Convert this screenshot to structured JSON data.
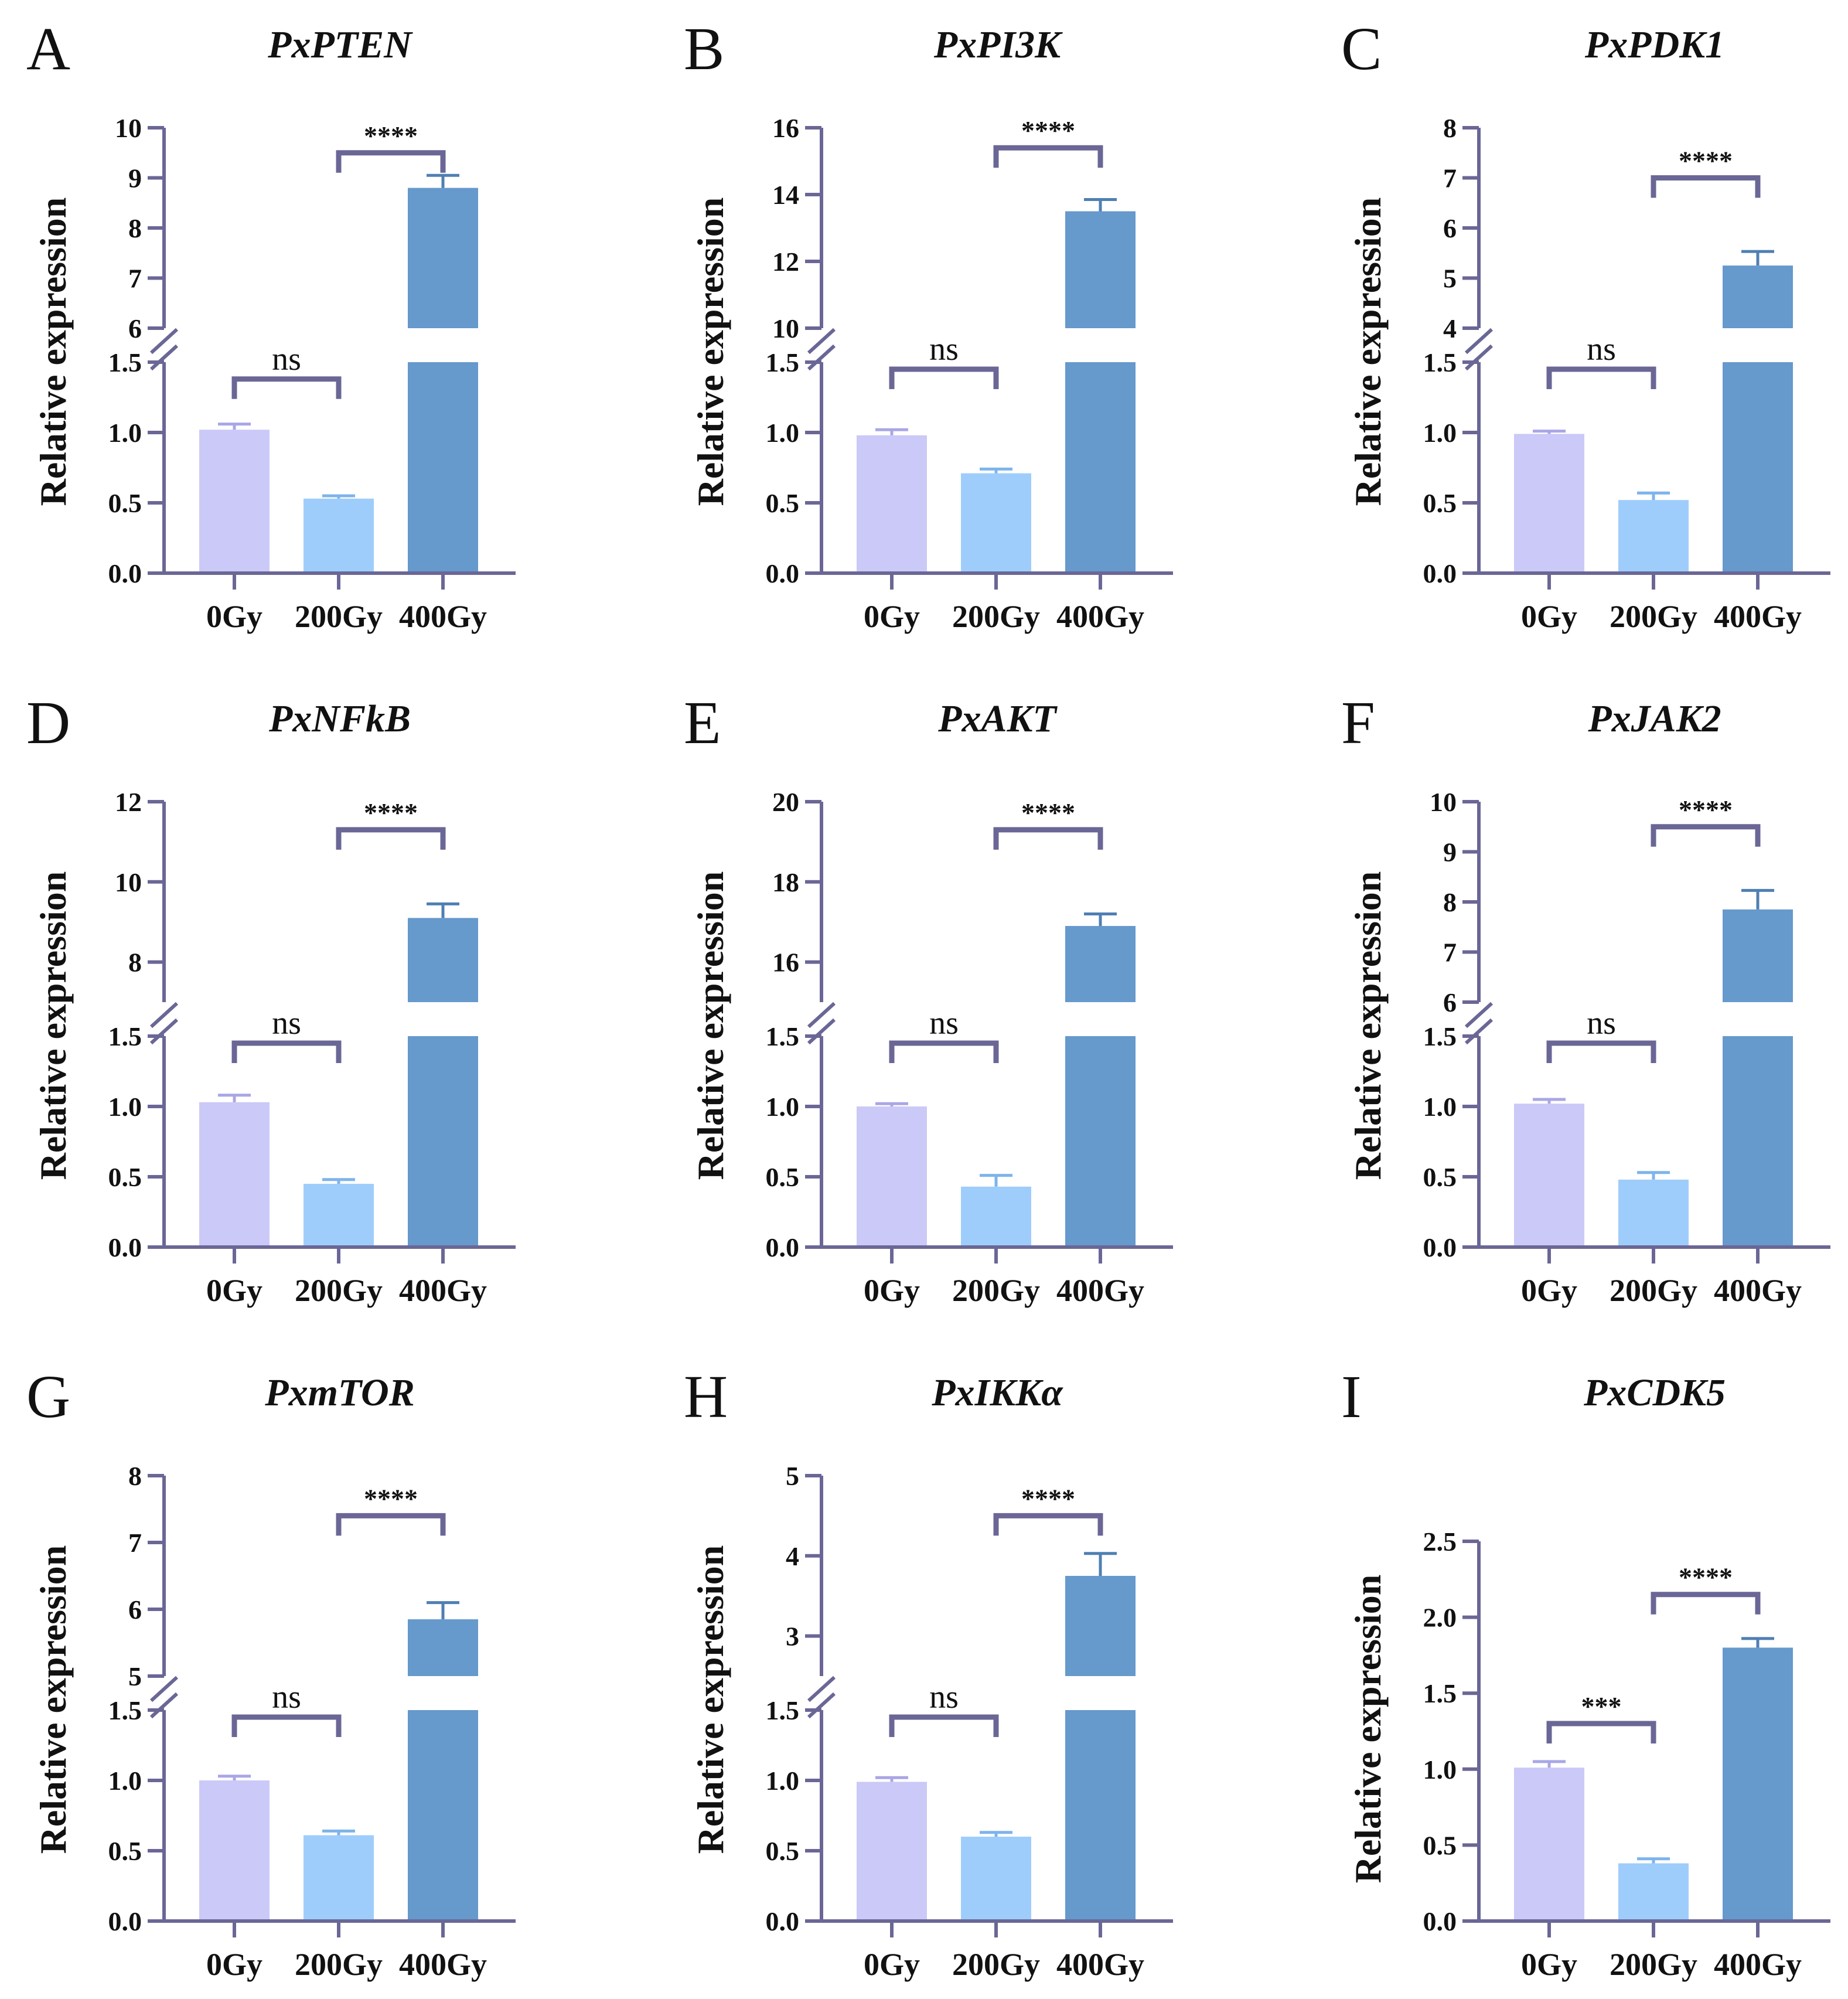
{
  "axis_color": "#6a6796",
  "bar_colors": [
    "#cbc9f7",
    "#9fcdfb",
    "#6699cc"
  ],
  "error_colors": [
    "#a9a6e6",
    "#7db4ec",
    "#4f7fb3"
  ],
  "chart_data": [
    {
      "letter": "A",
      "title": "PxPTEN",
      "type": "bar",
      "ylabel": "Relative expression",
      "categories": [
        "0Gy",
        "200Gy",
        "400Gy"
      ],
      "values": [
        1.02,
        0.53,
        8.8
      ],
      "errors": [
        0.04,
        0.02,
        0.25
      ],
      "broken_axis": true,
      "lower_ylim": [
        0,
        1.5
      ],
      "lower_ticks": [
        0.0,
        0.5,
        1.0,
        1.5
      ],
      "lower_tick_labels": [
        "0.0",
        "0.5",
        "1.0",
        "1.5"
      ],
      "upper_ylim": [
        6,
        10
      ],
      "upper_ticks": [
        6,
        7,
        8,
        9,
        10
      ],
      "upper_tick_labels": [
        "6",
        "7",
        "8",
        "9",
        "10"
      ],
      "comparisons": [
        {
          "from": 0,
          "to": 1,
          "label": "ns",
          "y": 1.38,
          "tier": "lower"
        },
        {
          "from": 1,
          "to": 2,
          "label": "****",
          "y": 9.5,
          "tier": "upper"
        }
      ]
    },
    {
      "letter": "B",
      "title": "PxPI3K",
      "type": "bar",
      "ylabel": "Relative expression",
      "categories": [
        "0Gy",
        "200Gy",
        "400Gy"
      ],
      "values": [
        0.98,
        0.71,
        13.5
      ],
      "errors": [
        0.04,
        0.03,
        0.35
      ],
      "broken_axis": true,
      "lower_ylim": [
        0,
        1.5
      ],
      "lower_ticks": [
        0.0,
        0.5,
        1.0,
        1.5
      ],
      "lower_tick_labels": [
        "0.0",
        "0.5",
        "1.0",
        "1.5"
      ],
      "upper_ylim": [
        10,
        16
      ],
      "upper_ticks": [
        10,
        12,
        14,
        16
      ],
      "upper_tick_labels": [
        "10",
        "12",
        "14",
        "16"
      ],
      "comparisons": [
        {
          "from": 0,
          "to": 1,
          "label": "ns",
          "y": 1.45,
          "tier": "lower"
        },
        {
          "from": 1,
          "to": 2,
          "label": "****",
          "y": 15.4,
          "tier": "upper"
        }
      ]
    },
    {
      "letter": "C",
      "title": "PxPDK1",
      "type": "bar",
      "ylabel": "Relative expression",
      "categories": [
        "0Gy",
        "200Gy",
        "400Gy"
      ],
      "values": [
        0.99,
        0.52,
        5.25
      ],
      "errors": [
        0.02,
        0.05,
        0.28
      ],
      "broken_axis": true,
      "lower_ylim": [
        0,
        1.5
      ],
      "lower_ticks": [
        0.0,
        0.5,
        1.0,
        1.5
      ],
      "lower_tick_labels": [
        "0.0",
        "0.5",
        "1.0",
        "1.5"
      ],
      "upper_ylim": [
        4,
        8
      ],
      "upper_ticks": [
        4,
        5,
        6,
        7,
        8
      ],
      "upper_tick_labels": [
        "4",
        "5",
        "6",
        "7",
        "8"
      ],
      "comparisons": [
        {
          "from": 0,
          "to": 1,
          "label": "ns",
          "y": 1.45,
          "tier": "lower"
        },
        {
          "from": 1,
          "to": 2,
          "label": "****",
          "y": 7.0,
          "tier": "upper"
        }
      ]
    },
    {
      "letter": "D",
      "title": "PxNFkB",
      "type": "bar",
      "ylabel": "Relative expression",
      "categories": [
        "0Gy",
        "200Gy",
        "400Gy"
      ],
      "values": [
        1.03,
        0.45,
        9.1
      ],
      "errors": [
        0.05,
        0.03,
        0.35
      ],
      "broken_axis": true,
      "lower_ylim": [
        0,
        1.5
      ],
      "lower_ticks": [
        0.0,
        0.5,
        1.0,
        1.5
      ],
      "lower_tick_labels": [
        "0.0",
        "0.5",
        "1.0",
        "1.5"
      ],
      "upper_ylim": [
        7,
        12
      ],
      "upper_ticks": [
        8,
        10,
        12
      ],
      "upper_tick_labels": [
        "8",
        "10",
        "12"
      ],
      "comparisons": [
        {
          "from": 0,
          "to": 1,
          "label": "ns",
          "y": 1.45,
          "tier": "lower"
        },
        {
          "from": 1,
          "to": 2,
          "label": "****",
          "y": 11.3,
          "tier": "upper"
        }
      ]
    },
    {
      "letter": "E",
      "title": "PxAKT",
      "type": "bar",
      "ylabel": "Relative expression",
      "categories": [
        "0Gy",
        "200Gy",
        "400Gy"
      ],
      "values": [
        1.0,
        0.43,
        16.9
      ],
      "errors": [
        0.02,
        0.08,
        0.3
      ],
      "broken_axis": true,
      "lower_ylim": [
        0,
        1.5
      ],
      "lower_ticks": [
        0.0,
        0.5,
        1.0,
        1.5
      ],
      "lower_tick_labels": [
        "0.0",
        "0.5",
        "1.0",
        "1.5"
      ],
      "upper_ylim": [
        15,
        20
      ],
      "upper_ticks": [
        16,
        18,
        20
      ],
      "upper_tick_labels": [
        "16",
        "18",
        "20"
      ],
      "comparisons": [
        {
          "from": 0,
          "to": 1,
          "label": "ns",
          "y": 1.45,
          "tier": "lower"
        },
        {
          "from": 1,
          "to": 2,
          "label": "****",
          "y": 19.3,
          "tier": "upper"
        }
      ]
    },
    {
      "letter": "F",
      "title": "PxJAK2",
      "type": "bar",
      "ylabel": "Relative expression",
      "categories": [
        "0Gy",
        "200Gy",
        "400Gy"
      ],
      "values": [
        1.02,
        0.48,
        7.85
      ],
      "errors": [
        0.03,
        0.05,
        0.38
      ],
      "broken_axis": true,
      "lower_ylim": [
        0,
        1.5
      ],
      "lower_ticks": [
        0.0,
        0.5,
        1.0,
        1.5
      ],
      "lower_tick_labels": [
        "0.0",
        "0.5",
        "1.0",
        "1.5"
      ],
      "upper_ylim": [
        6,
        10
      ],
      "upper_ticks": [
        6,
        7,
        8,
        9,
        10
      ],
      "upper_tick_labels": [
        "6",
        "7",
        "8",
        "9",
        "10"
      ],
      "comparisons": [
        {
          "from": 0,
          "to": 1,
          "label": "ns",
          "y": 1.45,
          "tier": "lower"
        },
        {
          "from": 1,
          "to": 2,
          "label": "****",
          "y": 9.5,
          "tier": "upper"
        }
      ]
    },
    {
      "letter": "G",
      "title": "PxmTOR",
      "type": "bar",
      "ylabel": "Relative expression",
      "categories": [
        "0Gy",
        "200Gy",
        "400Gy"
      ],
      "values": [
        1.0,
        0.61,
        5.85
      ],
      "errors": [
        0.03,
        0.03,
        0.25
      ],
      "broken_axis": true,
      "lower_ylim": [
        0,
        1.5
      ],
      "lower_ticks": [
        0.0,
        0.5,
        1.0,
        1.5
      ],
      "lower_tick_labels": [
        "0.0",
        "0.5",
        "1.0",
        "1.5"
      ],
      "upper_ylim": [
        5,
        8
      ],
      "upper_ticks": [
        5,
        6,
        7,
        8
      ],
      "upper_tick_labels": [
        "5",
        "6",
        "7",
        "8"
      ],
      "comparisons": [
        {
          "from": 0,
          "to": 1,
          "label": "ns",
          "y": 1.45,
          "tier": "lower"
        },
        {
          "from": 1,
          "to": 2,
          "label": "****",
          "y": 7.4,
          "tier": "upper"
        }
      ]
    },
    {
      "letter": "H",
      "title": "PxIKKα",
      "type": "bar",
      "ylabel": "Relative expression",
      "categories": [
        "0Gy",
        "200Gy",
        "400Gy"
      ],
      "values": [
        0.99,
        0.6,
        3.75
      ],
      "errors": [
        0.03,
        0.03,
        0.28
      ],
      "broken_axis": true,
      "lower_ylim": [
        0,
        1.5
      ],
      "lower_ticks": [
        0.0,
        0.5,
        1.0,
        1.5
      ],
      "lower_tick_labels": [
        "0.0",
        "0.5",
        "1.0",
        "1.5"
      ],
      "upper_ylim": [
        2.5,
        5
      ],
      "upper_ticks": [
        3,
        4,
        5
      ],
      "upper_tick_labels": [
        "3",
        "4",
        "5"
      ],
      "comparisons": [
        {
          "from": 0,
          "to": 1,
          "label": "ns",
          "y": 1.45,
          "tier": "lower"
        },
        {
          "from": 1,
          "to": 2,
          "label": "****",
          "y": 4.5,
          "tier": "upper"
        }
      ]
    },
    {
      "letter": "I",
      "title": "PxCDK5",
      "type": "bar",
      "ylabel": "Relative expression",
      "categories": [
        "0Gy",
        "200Gy",
        "400Gy"
      ],
      "values": [
        1.01,
        0.38,
        1.8
      ],
      "errors": [
        0.04,
        0.03,
        0.06
      ],
      "broken_axis": false,
      "ylim": [
        0,
        2.5
      ],
      "ticks": [
        0.0,
        0.5,
        1.0,
        1.5,
        2.0,
        2.5
      ],
      "tick_labels": [
        "0.0",
        "0.5",
        "1.0",
        "1.5",
        "2.0",
        "2.5"
      ],
      "comparisons": [
        {
          "from": 0,
          "to": 1,
          "label": "***",
          "y": 1.3,
          "tier": "single"
        },
        {
          "from": 1,
          "to": 2,
          "label": "****",
          "y": 2.15,
          "tier": "single"
        }
      ]
    }
  ]
}
